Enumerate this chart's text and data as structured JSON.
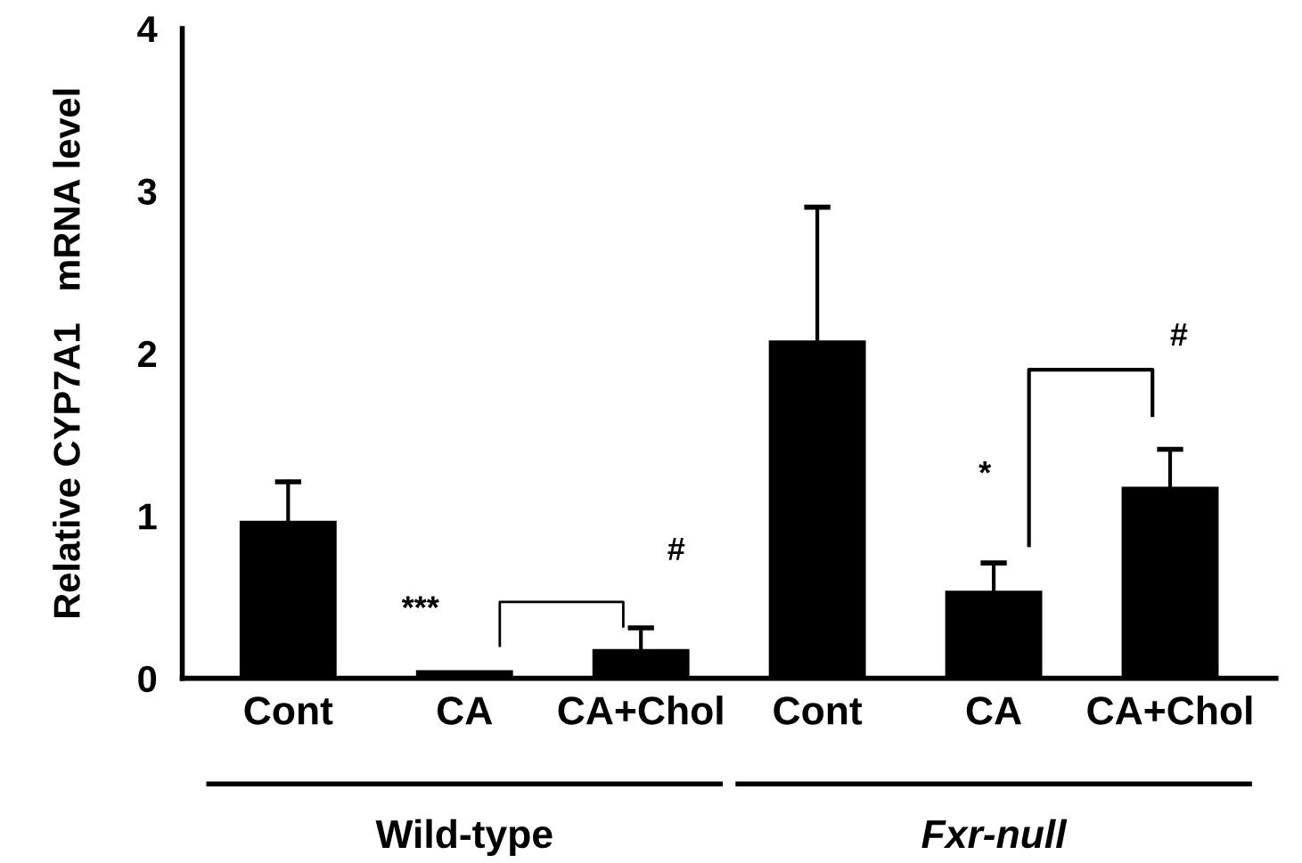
{
  "chart_data": {
    "type": "bar",
    "ylabel": "Relative CYP7A1   mRNA level",
    "categories": [
      "Cont",
      "CA",
      "CA+Chol",
      "Cont",
      "CA",
      "CA+Chol"
    ],
    "values": [
      0.97,
      0.05,
      0.18,
      2.08,
      0.54,
      1.18
    ],
    "errors": [
      [
        0.97,
        1.21
      ],
      null,
      [
        0.18,
        0.31
      ],
      [
        2.08,
        2.9
      ],
      [
        0.54,
        0.71
      ],
      [
        1.18,
        1.41
      ]
    ],
    "color": "#000000",
    "ylim": [
      0,
      4
    ],
    "yticks": [
      0,
      1,
      2,
      3,
      4
    ],
    "grid": false,
    "annotations": [
      "***",
      "#",
      "*",
      "#",
      "Wild-type",
      "Fxr-null"
    ]
  }
}
